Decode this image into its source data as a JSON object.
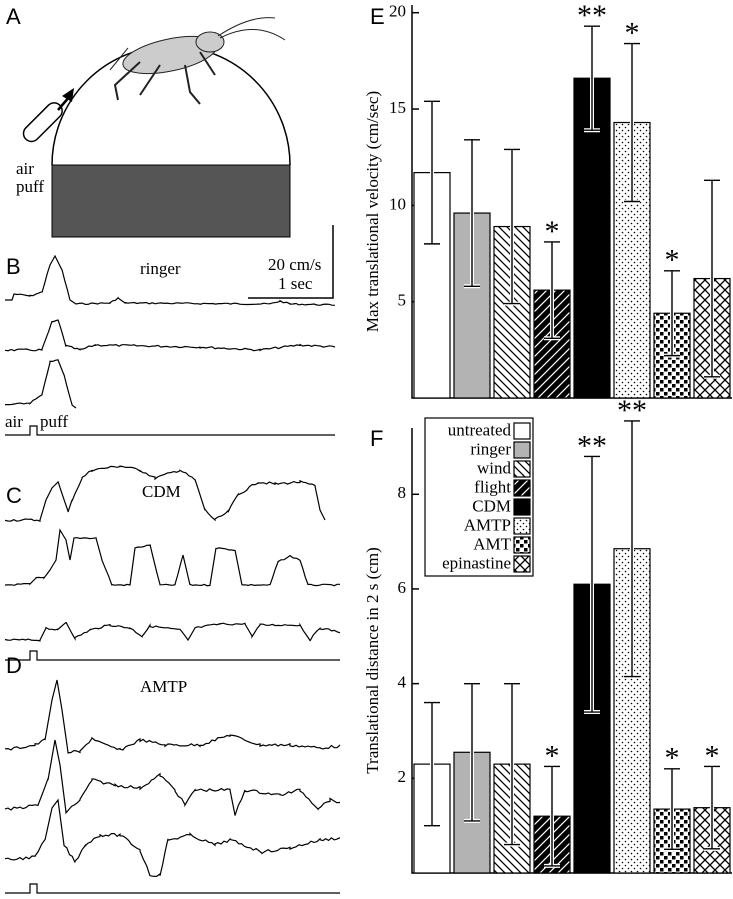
{
  "panel_a": {
    "label": "A",
    "stimulus": [
      "air",
      "puff"
    ]
  },
  "panel_b": {
    "label": "B",
    "condition": "ringer",
    "scale_y": "20 cm/s",
    "scale_x": "1 sec",
    "stimulus": [
      "air",
      "puff"
    ]
  },
  "panel_c": {
    "label": "C",
    "condition": "CDM"
  },
  "panel_d": {
    "label": "D",
    "condition": "AMTP"
  },
  "chart_data": [
    {
      "type": "bar",
      "panel": "E",
      "y_label": "Max translational velocity (cm/sec)",
      "values": [
        11.7,
        9.6,
        8.9,
        5.6,
        16.6,
        14.3,
        4.4,
        6.2
      ],
      "errors": [
        3.7,
        3.8,
        4.0,
        2.5,
        2.7,
        4.1,
        2.2,
        5.1
      ],
      "significance": [
        null,
        null,
        null,
        "*",
        "**",
        "*",
        "*",
        null
      ],
      "ylim": [
        0,
        20.4
      ],
      "yticks": [
        5,
        10,
        15,
        20
      ]
    },
    {
      "type": "bar",
      "panel": "F",
      "y_label": "Translational distance in 2 s (cm)",
      "categories": [
        "untreated",
        "ringer",
        "wind",
        "flight",
        "CDM",
        "AMTP",
        "AMT",
        "epinastine"
      ],
      "values": [
        2.3,
        2.55,
        2.3,
        1.2,
        6.1,
        6.85,
        1.35,
        1.38
      ],
      "errors": [
        1.3,
        1.45,
        1.7,
        1.05,
        2.7,
        2.7,
        0.85,
        0.87
      ],
      "significance": [
        null,
        null,
        null,
        "*",
        "**",
        "**",
        "*",
        "*"
      ],
      "ylim": [
        0,
        9.4
      ],
      "yticks": [
        2,
        4,
        6,
        8
      ],
      "legend": "upper left"
    }
  ]
}
